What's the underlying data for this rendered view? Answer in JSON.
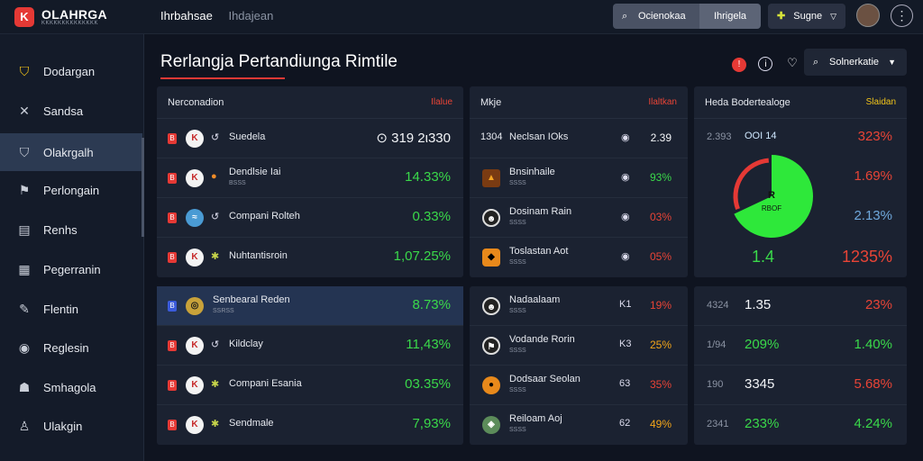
{
  "app": {
    "logo_mark": "K",
    "logo_title": "OLAHRGA",
    "logo_subtitle": "KKKKKKKKKKKKKK"
  },
  "topnav": {
    "active": "Ihrbahsae",
    "inactive": "Ihdajean"
  },
  "toolbar": {
    "segment_1": "Ocienokaa",
    "segment_2": "Ihrigela",
    "suggest": "Sugne",
    "more": "⋮"
  },
  "sidebar": {
    "items": [
      {
        "icon": "shield-icon",
        "glyph": "⛉",
        "label": "Dodargan"
      },
      {
        "icon": "tools-icon",
        "glyph": "✕",
        "label": "Sandsa"
      },
      {
        "icon": "trophy-icon",
        "glyph": "⛉",
        "label": "Olakrgalh"
      },
      {
        "icon": "league-icon",
        "glyph": "⚑",
        "label": "Perlongain"
      },
      {
        "icon": "list-icon",
        "glyph": "▤",
        "label": "Renhs"
      },
      {
        "icon": "table-icon",
        "glyph": "▦",
        "label": "Pegerranin"
      },
      {
        "icon": "pen-icon",
        "glyph": "✎",
        "label": "Flentin"
      },
      {
        "icon": "ball-icon",
        "glyph": "◉",
        "label": "Reglesin"
      },
      {
        "icon": "group-icon",
        "glyph": "☗",
        "label": "Smhagola"
      },
      {
        "icon": "user-icon",
        "glyph": "♙",
        "label": "Ulakgin"
      }
    ]
  },
  "page": {
    "title": "Rerlangja Pertandiunga  Rimtile",
    "sort_label": "Solnerkatie"
  },
  "panel_left": {
    "header_left": "Nerconadion",
    "header_right": "Ilalue",
    "rows": [
      {
        "badge": "B",
        "badge_color": "red",
        "mini": "↺",
        "team": "Suedela",
        "sub": "",
        "value": "⊙ 319 2ι330",
        "value_color": "white"
      },
      {
        "badge": "B",
        "badge_color": "red",
        "mini": "●",
        "team": "Dendlsie Iai",
        "sub": "BSSS",
        "value": "14.33%",
        "value_color": "green"
      },
      {
        "badge": "B",
        "badge_color": "red",
        "mini": "↺",
        "team": "Compani Rolteh",
        "sub": "",
        "value": "0.33%",
        "value_color": "green"
      },
      {
        "badge": "B",
        "badge_color": "red",
        "mini": "✱",
        "team": "Nuhtantisroin",
        "sub": "",
        "value": "1,07.25%",
        "value_color": "green"
      },
      {
        "badge": "B",
        "badge_color": "blue",
        "mini": "",
        "team": "Senbearal Reden",
        "sub": "SSRSS",
        "value": "8.73%",
        "value_color": "green"
      },
      {
        "badge": "B",
        "badge_color": "red",
        "mini": "↺",
        "team": "Kildclay",
        "sub": "",
        "value": "11,43%",
        "value_color": "green"
      },
      {
        "badge": "B",
        "badge_color": "red",
        "mini": "✱",
        "team": "Compani Esania",
        "sub": "",
        "value": "03.35%",
        "value_color": "green"
      },
      {
        "badge": "B",
        "badge_color": "red",
        "mini": "✱",
        "team": "Sendmale",
        "sub": "",
        "value": "7,93%",
        "value_color": "green"
      }
    ]
  },
  "panel_mid": {
    "header_left": "Mkje",
    "header_right": "Ilaltkan",
    "rows": [
      {
        "lead": "1304",
        "team": "Neclsan IOks",
        "sub": "",
        "odds_icon": "◉",
        "value": "2.39",
        "value_color": "white"
      },
      {
        "lead": "",
        "team": "Bnsinhaile",
        "sub": "SSSS",
        "odds_icon": "◉",
        "value": "93%",
        "value_color": "green"
      },
      {
        "lead": "",
        "team": "Dosinam Rain",
        "sub": "SSSS",
        "odds_icon": "◉",
        "value": "03%",
        "value_color": "red"
      },
      {
        "lead": "",
        "team": "Toslastan Aot",
        "sub": "SSSS",
        "odds_icon": "◉",
        "value": "05%",
        "value_color": "red"
      },
      {
        "lead": "",
        "team": "Nadaalaam",
        "sub": "SSSS",
        "odds_icon": "K1",
        "value": "19%",
        "value_color": "red"
      },
      {
        "lead": "",
        "team": "Vodande Rorin",
        "sub": "SSSS",
        "odds_icon": "K3",
        "value": "25%",
        "value_color": "orange"
      },
      {
        "lead": "",
        "team": "Dodsaar Seolan",
        "sub": "SSSS",
        "odds_icon": "63",
        "value": "35%",
        "value_color": "red"
      },
      {
        "lead": "",
        "team": "Reiloam Aoj",
        "sub": "SSSS",
        "odds_icon": "62",
        "value": "49%",
        "value_color": "orange"
      }
    ]
  },
  "panel_right": {
    "header_left": "Heda Bodertealoge",
    "header_right": "Slaidan",
    "top_left": "2.393",
    "top_mid": "OOI 14",
    "donut_label_1": "R",
    "donut_label_2": "RBOF",
    "donut_bottom": "1.4",
    "stats": [
      {
        "value": "323%",
        "color": "red"
      },
      {
        "value": "1.69%",
        "color": "red"
      },
      {
        "value": "2.13%",
        "color": "blue"
      },
      {
        "value": "1235%",
        "color": "red"
      }
    ],
    "rows": [
      {
        "lead": "4324",
        "mid": "1.35",
        "mid_color": "white",
        "value": "23%",
        "value_color": "red"
      },
      {
        "lead": "1/94",
        "mid": "209%",
        "mid_color": "green",
        "value": "1.40%",
        "value_color": "green"
      },
      {
        "lead": "190",
        "mid": "3345",
        "mid_color": "white",
        "value": "5.68%",
        "value_color": "red"
      },
      {
        "lead": "2341",
        "mid": "233%",
        "mid_color": "green",
        "value": "4.24%",
        "value_color": "green"
      }
    ]
  },
  "chart_data": {
    "type": "pie",
    "values": [
      68,
      32
    ],
    "colors": [
      "#2ee83a",
      "#e53935"
    ]
  }
}
